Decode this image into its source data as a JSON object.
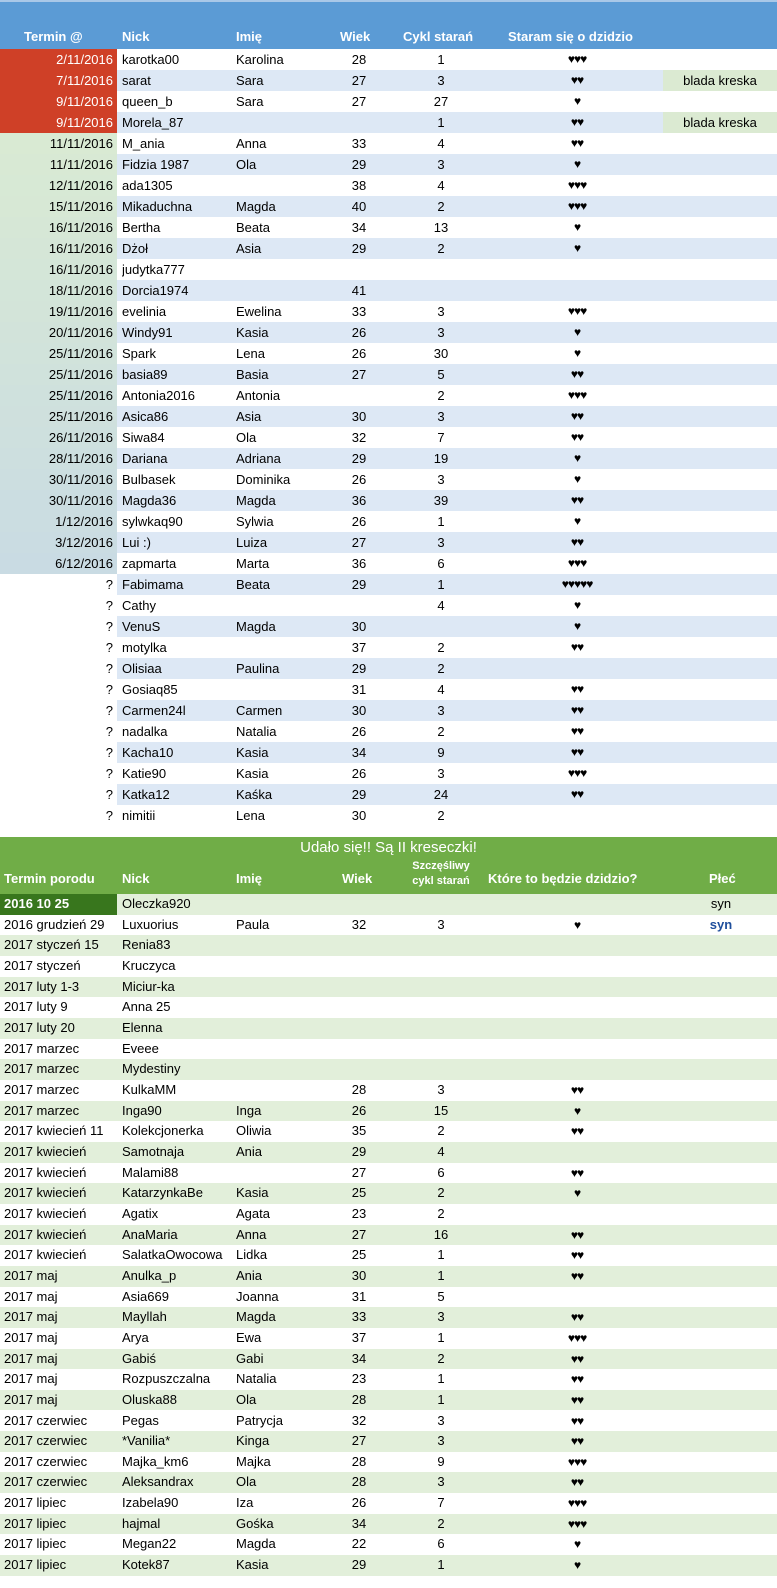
{
  "colors": {
    "header_blue": "#5b9bd5",
    "late_red": "#cf4027",
    "row_blue": "#dde8f5",
    "row_green": "#e2efda",
    "band_green": "#70ad47",
    "dark_green": "#38761d",
    "note_green": "#dbead2",
    "sex_blue": "#1f4e9c"
  },
  "heart_icon": "♥",
  "top": {
    "headers": {
      "date": "Termin @",
      "nick": "Nick",
      "name": "Imię",
      "age": "Wiek",
      "cycle": "Cykl starań",
      "hearts": "Staram się o dzidzio"
    },
    "rows": [
      {
        "date": "2/11/2016",
        "nick": "karotka00",
        "name": "Karolina",
        "age": "28",
        "cycle": "1",
        "hearts": 3,
        "note": "",
        "status": "late"
      },
      {
        "date": "7/11/2016",
        "nick": "sarat",
        "name": "Sara",
        "age": "27",
        "cycle": "3",
        "hearts": 2,
        "note": "blada kreska",
        "status": "late"
      },
      {
        "date": "9/11/2016",
        "nick": "queen_b",
        "name": "Sara",
        "age": "27",
        "cycle": "27",
        "hearts": 1,
        "note": "",
        "status": "late"
      },
      {
        "date": "9/11/2016",
        "nick": "Morela_87",
        "name": "",
        "age": "",
        "cycle": "1",
        "hearts": 2,
        "note": "blada kreska",
        "status": "late"
      },
      {
        "date": "11/11/2016",
        "nick": "M_ania",
        "name": "Anna",
        "age": "33",
        "cycle": "4",
        "hearts": 2,
        "note": "",
        "status": "dated"
      },
      {
        "date": "11/11/2016",
        "nick": "Fidzia 1987",
        "name": "Ola",
        "age": "29",
        "cycle": "3",
        "hearts": 1,
        "note": "",
        "status": "dated"
      },
      {
        "date": "12/11/2016",
        "nick": "ada1305",
        "name": "",
        "age": "38",
        "cycle": "4",
        "hearts": 3,
        "note": "",
        "status": "dated"
      },
      {
        "date": "15/11/2016",
        "nick": "Mikaduchna",
        "name": "Magda",
        "age": "40",
        "cycle": "2",
        "hearts": 3,
        "note": "",
        "status": "dated"
      },
      {
        "date": "16/11/2016",
        "nick": "Bertha",
        "name": "Beata",
        "age": "34",
        "cycle": "13",
        "hearts": 1,
        "note": "",
        "status": "dated"
      },
      {
        "date": "16/11/2016",
        "nick": "Dżoł",
        "name": "Asia",
        "age": "29",
        "cycle": "2",
        "hearts": 1,
        "note": "",
        "status": "dated"
      },
      {
        "date": "16/11/2016",
        "nick": "judytka777",
        "name": "",
        "age": "",
        "cycle": "",
        "hearts": 0,
        "note": "",
        "status": "dated"
      },
      {
        "date": "18/11/2016",
        "nick": "Dorcia1974",
        "name": "",
        "age": "41",
        "cycle": "",
        "hearts": 0,
        "note": "",
        "status": "dated"
      },
      {
        "date": "19/11/2016",
        "nick": "evelinia",
        "name": "Ewelina",
        "age": "33",
        "cycle": "3",
        "hearts": 3,
        "note": "",
        "status": "dated"
      },
      {
        "date": "20/11/2016",
        "nick": "Windy91",
        "name": "Kasia",
        "age": "26",
        "cycle": "3",
        "hearts": 1,
        "note": "",
        "status": "dated"
      },
      {
        "date": "25/11/2016",
        "nick": "Spark",
        "name": "Lena",
        "age": "26",
        "cycle": "30",
        "hearts": 1,
        "note": "",
        "status": "dated"
      },
      {
        "date": "25/11/2016",
        "nick": "basia89",
        "name": "Basia",
        "age": "27",
        "cycle": "5",
        "hearts": 2,
        "note": "",
        "status": "dated"
      },
      {
        "date": "25/11/2016",
        "nick": "Antonia2016",
        "name": "Antonia",
        "age": "",
        "cycle": "2",
        "hearts": 3,
        "note": "",
        "status": "dated"
      },
      {
        "date": "25/11/2016",
        "nick": "Asica86",
        "name": "Asia",
        "age": "30",
        "cycle": "3",
        "hearts": 2,
        "note": "",
        "status": "dated"
      },
      {
        "date": "26/11/2016",
        "nick": "Siwa84",
        "name": "Ola",
        "age": "32",
        "cycle": "7",
        "hearts": 2,
        "note": "",
        "status": "dated"
      },
      {
        "date": "28/11/2016",
        "nick": "Dariana",
        "name": "Adriana",
        "age": "29",
        "cycle": "19",
        "hearts": 1,
        "note": "",
        "status": "dated"
      },
      {
        "date": "30/11/2016",
        "nick": "Bulbasek",
        "name": "Dominika",
        "age": "26",
        "cycle": "3",
        "hearts": 1,
        "note": "",
        "status": "dated"
      },
      {
        "date": "30/11/2016",
        "nick": "Magda36",
        "name": "Magda",
        "age": "36",
        "cycle": "39",
        "hearts": 2,
        "note": "",
        "status": "dated"
      },
      {
        "date": "1/12/2016",
        "nick": "sylwkaq90",
        "name": "Sylwia",
        "age": "26",
        "cycle": "1",
        "hearts": 1,
        "note": "",
        "status": "dated"
      },
      {
        "date": "3/12/2016",
        "nick": "Lui :)",
        "name": "Luiza",
        "age": "27",
        "cycle": "3",
        "hearts": 2,
        "note": "",
        "status": "dated"
      },
      {
        "date": "6/12/2016",
        "nick": "zapmarta",
        "name": "Marta",
        "age": "36",
        "cycle": "6",
        "hearts": 3,
        "note": "",
        "status": "dated"
      },
      {
        "date": "?",
        "nick": "Fabimama",
        "name": "Beata",
        "age": "29",
        "cycle": "1",
        "hearts": 5,
        "note": "",
        "status": "unknown"
      },
      {
        "date": "?",
        "nick": "Cathy",
        "name": "",
        "age": "",
        "cycle": "4",
        "hearts": 1,
        "note": "",
        "status": "unknown"
      },
      {
        "date": "?",
        "nick": "VenuS",
        "name": "Magda",
        "age": "30",
        "cycle": "",
        "hearts": 1,
        "note": "",
        "status": "unknown"
      },
      {
        "date": "?",
        "nick": "motylka",
        "name": "",
        "age": "37",
        "cycle": "2",
        "hearts": 2,
        "note": "",
        "status": "unknown"
      },
      {
        "date": "?",
        "nick": "Olisiaa",
        "name": "Paulina",
        "age": "29",
        "cycle": "2",
        "hearts": 0,
        "note": "",
        "status": "unknown"
      },
      {
        "date": "?",
        "nick": "Gosiaq85",
        "name": "",
        "age": "31",
        "cycle": "4",
        "hearts": 2,
        "note": "",
        "status": "unknown"
      },
      {
        "date": "?",
        "nick": "Carmen24l",
        "name": "Carmen",
        "age": "30",
        "cycle": "3",
        "hearts": 2,
        "note": "",
        "status": "unknown"
      },
      {
        "date": "?",
        "nick": "nadalka",
        "name": "Natalia",
        "age": "26",
        "cycle": "2",
        "hearts": 2,
        "note": "",
        "status": "unknown"
      },
      {
        "date": "?",
        "nick": "Kacha10",
        "name": "Kasia",
        "age": "34",
        "cycle": "9",
        "hearts": 2,
        "note": "",
        "status": "unknown"
      },
      {
        "date": "?",
        "nick": "Katie90",
        "name": "Kasia",
        "age": "26",
        "cycle": "3",
        "hearts": 3,
        "note": "",
        "status": "unknown"
      },
      {
        "date": "?",
        "nick": "Katka12",
        "name": "Kaśka",
        "age": "29",
        "cycle": "24",
        "hearts": 2,
        "note": "",
        "status": "unknown"
      },
      {
        "date": "?",
        "nick": "nimitii",
        "name": "Lena",
        "age": "30",
        "cycle": "2",
        "hearts": 0,
        "note": "",
        "status": "unknown"
      }
    ]
  },
  "bottom": {
    "title": "Udało się!! Są II kreseczki!",
    "headers": {
      "date": "Termin porodu",
      "nick": "Nick",
      "name": "Imię",
      "age": "Wiek",
      "cycle_line1": "Szczęśliwy",
      "cycle_line2": "cykl starań",
      "which": "Które to będzie dzidzio?",
      "sex": "Płeć"
    },
    "rows": [
      {
        "date": "2016 10 25",
        "nick": "Oleczka920",
        "name": "",
        "age": "",
        "cycle": "",
        "hearts": 0,
        "sex": "syn",
        "highlight": true
      },
      {
        "date": "2016 grudzień 29",
        "nick": "Luxuorius",
        "name": "Paula",
        "age": "32",
        "cycle": "3",
        "hearts": 1,
        "sex": "syn",
        "sex_blue": true
      },
      {
        "date": "2017 styczeń 15",
        "nick": "Renia83",
        "name": "",
        "age": "",
        "cycle": "",
        "hearts": 0,
        "sex": ""
      },
      {
        "date": "2017 styczeń",
        "nick": "Kruczyca",
        "name": "",
        "age": "",
        "cycle": "",
        "hearts": 0,
        "sex": ""
      },
      {
        "date": "2017 luty 1-3",
        "nick": "Miciur-ka",
        "name": "",
        "age": "",
        "cycle": "",
        "hearts": 0,
        "sex": ""
      },
      {
        "date": "2017 luty 9",
        "nick": "Anna 25",
        "name": "",
        "age": "",
        "cycle": "",
        "hearts": 0,
        "sex": ""
      },
      {
        "date": "2017 luty 20",
        "nick": "Elenna",
        "name": "",
        "age": "",
        "cycle": "",
        "hearts": 0,
        "sex": ""
      },
      {
        "date": "2017 marzec",
        "nick": "Eveee",
        "name": "",
        "age": "",
        "cycle": "",
        "hearts": 0,
        "sex": ""
      },
      {
        "date": "2017 marzec",
        "nick": "Mydestiny",
        "name": "",
        "age": "",
        "cycle": "",
        "hearts": 0,
        "sex": ""
      },
      {
        "date": "2017 marzec",
        "nick": "KulkaMM",
        "name": "",
        "age": "28",
        "cycle": "3",
        "hearts": 2,
        "sex": ""
      },
      {
        "date": "2017 marzec",
        "nick": "Inga90",
        "name": "Inga",
        "age": "26",
        "cycle": "15",
        "hearts": 1,
        "sex": ""
      },
      {
        "date": "2017 kwiecień 11",
        "nick": "Kolekcjonerka",
        "name": "Oliwia",
        "age": "35",
        "cycle": "2",
        "hearts": 2,
        "sex": ""
      },
      {
        "date": "2017 kwiecień",
        "nick": "Samotnaja",
        "name": "Ania",
        "age": "29",
        "cycle": "4",
        "hearts": 0,
        "sex": ""
      },
      {
        "date": "2017 kwiecień",
        "nick": "Malami88",
        "name": "",
        "age": "27",
        "cycle": "6",
        "hearts": 2,
        "sex": ""
      },
      {
        "date": "2017 kwiecień",
        "nick": "KatarzynkaBe",
        "name": "Kasia",
        "age": "25",
        "cycle": "2",
        "hearts": 1,
        "sex": ""
      },
      {
        "date": "2017 kwiecień",
        "nick": "Agatix",
        "name": "Agata",
        "age": "23",
        "cycle": "2",
        "hearts": 0,
        "sex": ""
      },
      {
        "date": "2017 kwiecień",
        "nick": "AnaMaria",
        "name": "Anna",
        "age": "27",
        "cycle": "16",
        "hearts": 2,
        "sex": ""
      },
      {
        "date": "2017 kwiecień",
        "nick": "SalatkaOwocowa",
        "name": "Lidka",
        "age": "25",
        "cycle": "1",
        "hearts": 2,
        "sex": ""
      },
      {
        "date": "2017 maj",
        "nick": "Anulka_p",
        "name": "Ania",
        "age": "30",
        "cycle": "1",
        "hearts": 2,
        "sex": ""
      },
      {
        "date": "2017 maj",
        "nick": "Asia669",
        "name": "Joanna",
        "age": "31",
        "cycle": "5",
        "hearts": 0,
        "sex": ""
      },
      {
        "date": "2017 maj",
        "nick": "Mayllah",
        "name": "Magda",
        "age": "33",
        "cycle": "3",
        "hearts": 2,
        "sex": ""
      },
      {
        "date": "2017 maj",
        "nick": "Arya",
        "name": "Ewa",
        "age": "37",
        "cycle": "1",
        "hearts": 3,
        "sex": ""
      },
      {
        "date": "2017 maj",
        "nick": "Gabiś",
        "name": "Gabi",
        "age": "34",
        "cycle": "2",
        "hearts": 2,
        "sex": ""
      },
      {
        "date": "2017 maj",
        "nick": "Rozpuszczalna",
        "name": "Natalia",
        "age": "23",
        "cycle": "1",
        "hearts": 2,
        "sex": ""
      },
      {
        "date": "2017 maj",
        "nick": "Oluska88",
        "name": "Ola",
        "age": "28",
        "cycle": "1",
        "hearts": 2,
        "sex": ""
      },
      {
        "date": "2017 czerwiec",
        "nick": "Pegas",
        "name": "Patrycja",
        "age": "32",
        "cycle": "3",
        "hearts": 2,
        "sex": ""
      },
      {
        "date": "2017 czerwiec",
        "nick": "*Vanilia*",
        "name": "Kinga",
        "age": "27",
        "cycle": "3",
        "hearts": 2,
        "sex": ""
      },
      {
        "date": "2017 czerwiec",
        "nick": "Majka_km6",
        "name": "Majka",
        "age": "28",
        "cycle": "9",
        "hearts": 3,
        "sex": ""
      },
      {
        "date": "2017 czerwiec",
        "nick": "Aleksandrax",
        "name": "Ola",
        "age": "28",
        "cycle": "3",
        "hearts": 2,
        "sex": ""
      },
      {
        "date": "2017 lipiec",
        "nick": "Izabela90",
        "name": "Iza",
        "age": "26",
        "cycle": "7",
        "hearts": 3,
        "sex": ""
      },
      {
        "date": "2017 lipiec",
        "nick": "hajmal",
        "name": "Gośka",
        "age": "34",
        "cycle": "2",
        "hearts": 3,
        "sex": ""
      },
      {
        "date": "2017 lipiec",
        "nick": "Megan22",
        "name": "Magda",
        "age": "22",
        "cycle": "6",
        "hearts": 1,
        "sex": ""
      },
      {
        "date": "2017 lipiec",
        "nick": "Kotek87",
        "name": "Kasia",
        "age": "29",
        "cycle": "1",
        "hearts": 1,
        "sex": ""
      }
    ]
  }
}
